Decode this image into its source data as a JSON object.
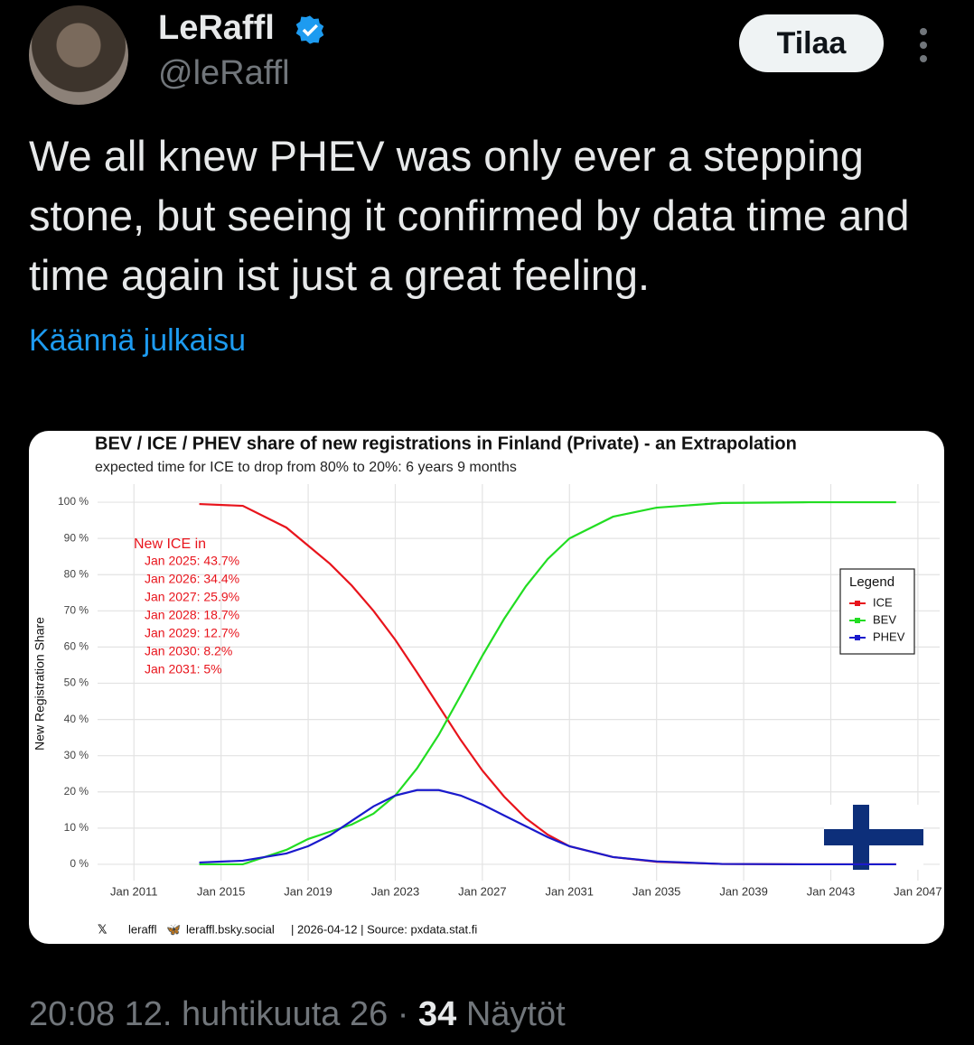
{
  "post": {
    "author": "LeRaffl",
    "handle": "@leRaffl",
    "follow_button": "Tilaa",
    "text": "We all knew PHEV was only ever a stepping stone, but seeing it confirmed by data time and time again ist just a great feeling.",
    "translate": "Käännä julkaisu",
    "timestamp": "20:08 12. huhtikuuta 26",
    "separator": "·",
    "views": "34",
    "views_label": "Näytöt"
  },
  "chart_data": {
    "type": "line",
    "title": "BEV / ICE / PHEV share of new registrations in Finland (Private) - an Extrapolation",
    "subtitle": "expected time for ICE to drop from 80% to 20%: 6 years 9 months",
    "y_label": "New Registration Share",
    "x": [
      2014,
      2016,
      2018,
      2019,
      2020,
      2021,
      2022,
      2023,
      2024,
      2025,
      2026,
      2027,
      2028,
      2029,
      2030,
      2031,
      2033,
      2035,
      2038,
      2042,
      2046
    ],
    "series": [
      {
        "name": "ICE",
        "color": "#e8141c",
        "values": [
          99.5,
          99,
          93,
          88,
          83,
          77,
          70,
          62,
          53,
          43.7,
          34.4,
          25.9,
          18.7,
          12.7,
          8.2,
          5,
          2,
          0.7,
          0.1,
          0,
          0
        ]
      },
      {
        "name": "BEV",
        "color": "#22dd22",
        "values": [
          0,
          0,
          4,
          7,
          9,
          11,
          14,
          19,
          26.5,
          35.8,
          46.6,
          57.6,
          67.8,
          76.8,
          84.3,
          90,
          96,
          98.5,
          99.8,
          100,
          100
        ]
      },
      {
        "name": "PHEV",
        "color": "#1a1acc",
        "values": [
          0.5,
          1,
          3,
          5,
          8,
          12,
          16,
          19,
          20.5,
          20.5,
          19,
          16.5,
          13.5,
          10.5,
          7.5,
          5,
          2,
          0.8,
          0.1,
          0,
          0
        ]
      }
    ],
    "xlim": [
      2009.33,
      2048
    ],
    "xticks": [
      {
        "value": 2011,
        "label": "Jan 2011"
      },
      {
        "value": 2015,
        "label": "Jan 2015"
      },
      {
        "value": 2019,
        "label": "Jan 2019"
      },
      {
        "value": 2023,
        "label": "Jan 2023"
      },
      {
        "value": 2027,
        "label": "Jan 2027"
      },
      {
        "value": 2031,
        "label": "Jan 2031"
      },
      {
        "value": 2035,
        "label": "Jan 2035"
      },
      {
        "value": 2039,
        "label": "Jan 2039"
      },
      {
        "value": 2043,
        "label": "Jan 2043"
      },
      {
        "value": 2047,
        "label": "Jan 2047"
      }
    ],
    "ylim": [
      -4.5,
      105
    ],
    "yticks": [
      {
        "value": 0,
        "label": "0 %"
      },
      {
        "value": 10,
        "label": "10 %"
      },
      {
        "value": 20,
        "label": "20 %"
      },
      {
        "value": 30,
        "label": "30 %"
      },
      {
        "value": 40,
        "label": "40 %"
      },
      {
        "value": 50,
        "label": "50 %"
      },
      {
        "value": 60,
        "label": "60 %"
      },
      {
        "value": 70,
        "label": "70 %"
      },
      {
        "value": 80,
        "label": "80 %"
      },
      {
        "value": 90,
        "label": "90 %"
      },
      {
        "value": 100,
        "label": "100 %"
      }
    ],
    "grid": true,
    "legend_title": "Legend",
    "legend_position": "right",
    "annotation_title": "New ICE in",
    "annotations": [
      "Jan 2025: 43.7%",
      "Jan 2026: 34.4%",
      "Jan 2027: 25.9%",
      "Jan 2028: 18.7%",
      "Jan 2029: 12.7%",
      "Jan 2030: 8.2%",
      "Jan 2031: 5%"
    ],
    "annotation_color": "#e8141c",
    "footer": [
      "leraffl",
      "leraffl.bsky.social",
      "| 2026-04-12 | Source: pxdata.stat.fi"
    ]
  }
}
